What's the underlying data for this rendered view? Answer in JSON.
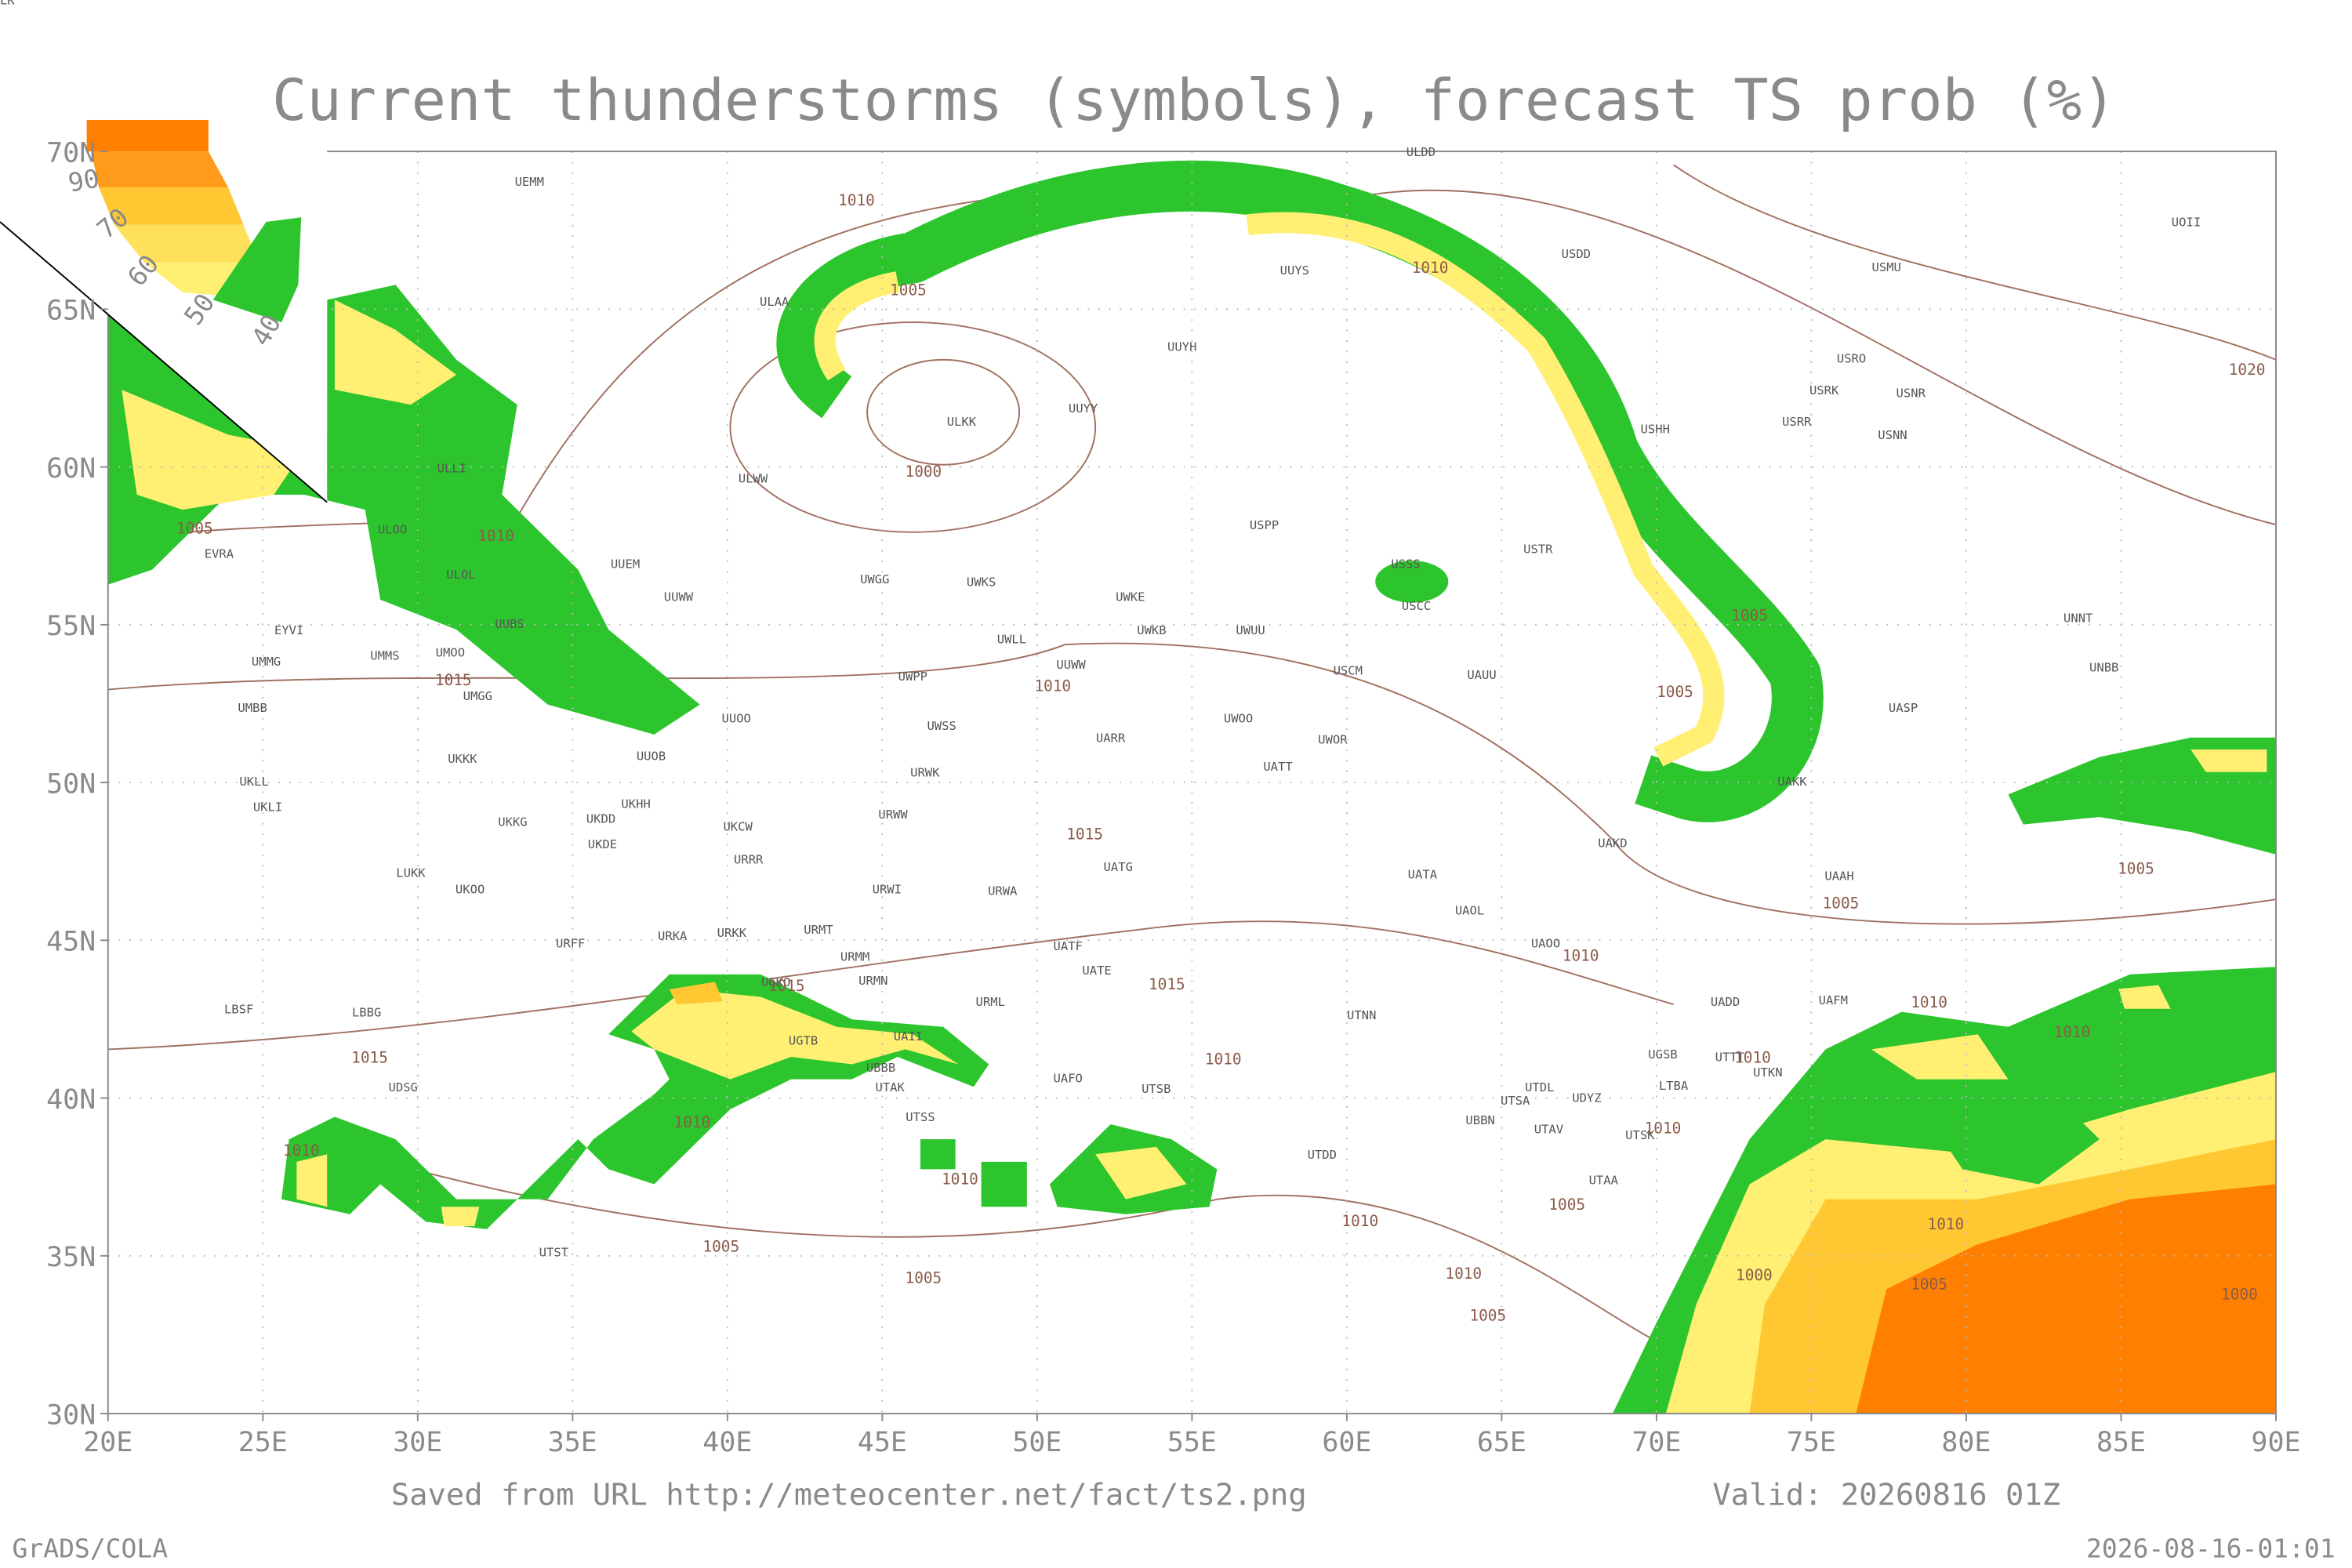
{
  "header": {
    "title": "Current thunderstorms (symbols), forecast TS prob (%)"
  },
  "legend": {
    "labels": [
      "90",
      "70",
      "60",
      "50",
      "40"
    ]
  },
  "axes": {
    "lat_labels": [
      "70N",
      "65N",
      "60N",
      "55N",
      "50N",
      "45N",
      "40N",
      "35N",
      "30N"
    ],
    "lon_labels": [
      "20E",
      "25E",
      "30E",
      "35E",
      "40E",
      "45E",
      "50E",
      "55E",
      "60E",
      "65E",
      "70E",
      "75E",
      "80E",
      "85E",
      "90E"
    ]
  },
  "stations": [
    "ULDD",
    "UEMM",
    "USDD",
    "UUYS",
    "USMU",
    "UOII",
    "ULAA",
    "UUYH",
    "USRO",
    "USRK",
    "USNR",
    "UUYY",
    "ULKK",
    "USRR",
    "USNN",
    "USHH",
    "ULLI",
    "ULWW",
    "USPP",
    "ULOO",
    "USTR",
    "EVRA",
    "UUEM",
    "USSS",
    "ULOL",
    "UWGG",
    "UWKS",
    "UWKE",
    "UUWW",
    "USCC",
    "UNNT",
    "UWLL",
    "UUBS",
    "UWKB",
    "UWUU",
    "EYVI",
    "UMMS",
    "UMOO",
    "UUWW",
    "UMMG",
    "USCM",
    "UAUU",
    "UNBB",
    "UWPP",
    "UMGG",
    "UASP",
    "UMBB",
    "UUOO",
    "UWOO",
    "UWOR",
    "UARR",
    "UWSS",
    "UKKK",
    "UUOB",
    "UATT",
    "URWK",
    "UKLL",
    "UAKK",
    "UKHH",
    "UKLI",
    "URWW",
    "UKKG",
    "UKDD",
    "UKCW",
    "UKDE",
    "UAKD",
    "URRR",
    "UATG",
    "LUKK",
    "UATA",
    "UAAH",
    "UKOO",
    "URWI",
    "URWA",
    "UAOL",
    "URMT",
    "URKA",
    "URKK",
    "URFF",
    "UAOO",
    "UATF",
    "URMM",
    "UATE",
    "URMN",
    "UGKO",
    "UADD",
    "UAFM",
    "LBSF",
    "URML",
    "LBBG",
    "UTNN",
    "UAII",
    "UGTB",
    "UGSB",
    "UTTT",
    "UTKN",
    "UAFO",
    "UBBB",
    "UDSG",
    "LTBA",
    "UTDL",
    "UTSA",
    "UTSB",
    "UTAK",
    "UDYZ",
    "UTSS",
    "UBBN",
    "UTAV",
    "UTSK",
    "UTDD",
    "UTAA",
    "UTST",
    "LCLK"
  ],
  "isobar_labels": [
    "1010",
    "1005",
    "1010",
    "1000",
    "1010",
    "1005",
    "1005",
    "1015",
    "1010",
    "1005",
    "1015",
    "1005",
    "1005",
    "1010",
    "1015",
    "1015",
    "1010",
    "1010",
    "1015",
    "1010",
    "1010",
    "1010",
    "1010",
    "1010",
    "1010",
    "1005",
    "1010",
    "1005",
    "1010",
    "1000",
    "1005",
    "1010",
    "1005",
    "1005",
    "1000",
    "1020"
  ],
  "footer": {
    "source": "Saved from URL http://meteocenter.net/fact/ts2.png",
    "valid": "Valid: 20260816 01Z",
    "software": "GrADS/COLA",
    "timestamp": "2026-08-16-01:01"
  }
}
